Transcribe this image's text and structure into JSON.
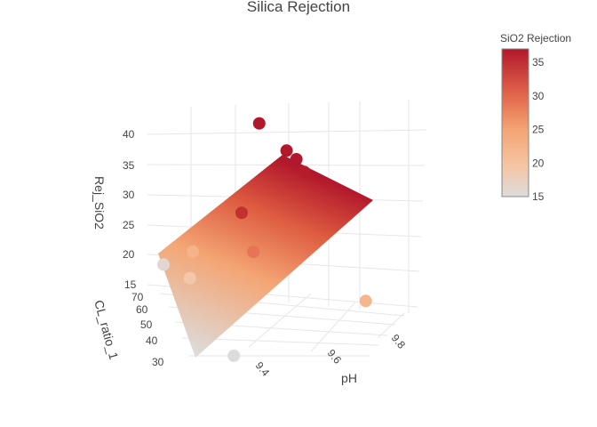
{
  "chart_data": {
    "type": "scatter3d",
    "title": "Silica Rejection",
    "axes": {
      "x": {
        "label": "pH",
        "ticks": [
          "9.4",
          "9.6",
          "9.8"
        ]
      },
      "y": {
        "label": "CL_ratio_1",
        "ticks": [
          "30",
          "40",
          "50",
          "60",
          "70"
        ]
      },
      "z": {
        "label": "Rej_SiO2",
        "ticks": [
          "15",
          "20",
          "25",
          "30",
          "35",
          "40"
        ]
      }
    },
    "colorbar": {
      "title": "SiO2 Rejection",
      "range": [
        15,
        37
      ],
      "ticks": [
        "15",
        "20",
        "25",
        "30",
        "35"
      ],
      "colorscale": [
        "#dcdcdc",
        "#f5c6a5",
        "#f4a574",
        "#e0634a",
        "#c3332d",
        "#b2182b"
      ]
    },
    "points": [
      {
        "pH": 9.55,
        "CL_ratio_1": 72,
        "Rej_SiO2": 42.0
      },
      {
        "pH": 9.62,
        "CL_ratio_1": 72,
        "Rej_SiO2": 38.5
      },
      {
        "pH": 9.64,
        "CL_ratio_1": 70,
        "Rej_SiO2": 38.0
      },
      {
        "pH": 9.66,
        "CL_ratio_1": 70,
        "Rej_SiO2": 36.2
      },
      {
        "pH": 9.45,
        "CL_ratio_1": 50,
        "Rej_SiO2": 33.0
      },
      {
        "pH": 9.48,
        "CL_ratio_1": 50,
        "Rej_SiO2": 27.0
      },
      {
        "pH": 9.78,
        "CL_ratio_1": 55,
        "Rej_SiO2": 21.5
      },
      {
        "pH": 9.35,
        "CL_ratio_1": 60,
        "Rej_SiO2": 22.0
      },
      {
        "pH": 9.33,
        "CL_ratio_1": 55,
        "Rej_SiO2": 19.0
      },
      {
        "pH": 9.3,
        "CL_ratio_1": 70,
        "Rej_SiO2": 16.0
      },
      {
        "pH": 9.38,
        "CL_ratio_1": 30,
        "Rej_SiO2": 15.0
      }
    ],
    "surface": {
      "corners": [
        {
          "pH": 9.3,
          "CL_ratio_1": 70,
          "Rej_SiO2": 20.5
        },
        {
          "pH": 9.65,
          "CL_ratio_1": 70,
          "Rej_SiO2": 37.5
        },
        {
          "pH": 9.9,
          "CL_ratio_1": 28,
          "Rej_SiO2": 28.5
        },
        {
          "pH": 9.3,
          "CL_ratio_1": 28,
          "Rej_SiO2": 15.0
        }
      ]
    },
    "grid": true,
    "legend": "none"
  }
}
